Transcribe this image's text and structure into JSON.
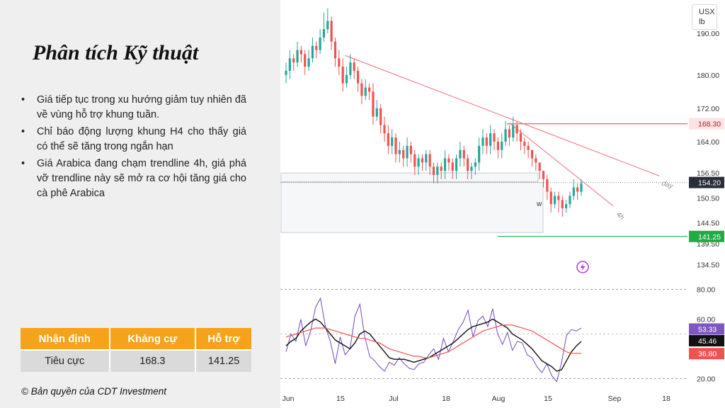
{
  "panel": {
    "title": "Phân tích Kỹ thuật",
    "bullets": [
      "Giá tiếp tục trong xu hướng giảm tuy nhiên đã về vùng hỗ trợ khung tuần.",
      "Chỉ báo động lượng khung H4 cho thấy giá có thể sẽ tăng trong ngắn hạn",
      "Giá Arabica đang chạm trendline 4h, giá phá vỡ trendline này sẽ mở ra cơ hội tăng giá cho cà phê Arabica"
    ],
    "table": {
      "headers": [
        "Nhận định",
        "Kháng cự",
        "Hỗ trợ"
      ],
      "rows": [
        [
          "Tiêu cực",
          "168.3",
          "141.25"
        ]
      ]
    },
    "copyright": "© Bản quyền của CDT Investment"
  },
  "colors": {
    "up": "#26a69a",
    "down": "#ef5350",
    "resistance": "#f23645",
    "support": "#22ab45",
    "trendline": "#f26b7a",
    "rsi": "#7e57c2",
    "orange": "#f5a31a"
  },
  "chart_data": [
    {
      "type": "candlestick",
      "unit": [
        "USX",
        "lb"
      ],
      "ylim": [
        130,
        198
      ],
      "x_ticks": [
        "Jun",
        "15",
        "Jul",
        "18",
        "Aug",
        "15",
        "Sep",
        "18"
      ],
      "y_ticks": [
        190.0,
        180.0,
        172.0,
        164.0,
        156.5,
        150.5,
        144.5,
        139.5,
        134.5
      ],
      "y_tick_labels": [
        "190.00",
        "180.00",
        "172.00",
        "164.00",
        "156.50",
        "150.50",
        "144.50",
        "139.50",
        "134.50"
      ],
      "price_labels": [
        {
          "value": 168.3,
          "label": "168.30",
          "kind": "resistance"
        },
        {
          "value": 154.2,
          "label": "154.20",
          "kind": "last"
        },
        {
          "value": 141.25,
          "label": "141.25",
          "kind": "support"
        }
      ],
      "trendline_labels": [
        "day",
        "4h"
      ],
      "annotations": [
        "w"
      ],
      "closes": [
        181,
        184,
        183,
        186,
        185,
        182,
        184,
        187,
        186,
        189,
        191,
        193,
        188,
        184,
        182,
        178,
        180,
        183,
        181,
        178,
        175,
        177,
        176,
        170,
        172,
        168,
        166,
        163,
        165,
        161,
        162,
        160,
        163,
        161,
        158,
        160,
        159,
        161,
        158,
        156,
        158,
        157,
        160,
        159,
        157,
        160,
        162,
        160,
        157,
        158,
        159,
        163,
        165,
        163,
        166,
        164,
        162,
        164,
        167,
        165,
        168,
        166,
        164,
        163,
        162,
        160,
        159,
        157,
        155,
        152,
        149,
        151,
        150,
        148,
        149,
        151,
        153,
        152,
        154
      ],
      "opens": [
        180,
        181,
        184,
        183,
        186,
        185,
        182,
        184,
        187,
        186,
        189,
        191,
        193,
        188,
        184,
        182,
        178,
        180,
        183,
        181,
        178,
        175,
        177,
        176,
        170,
        172,
        168,
        166,
        163,
        165,
        161,
        162,
        160,
        163,
        161,
        158,
        160,
        159,
        161,
        158,
        156,
        158,
        157,
        160,
        159,
        157,
        160,
        162,
        160,
        157,
        158,
        159,
        163,
        165,
        163,
        166,
        164,
        162,
        164,
        167,
        165,
        168,
        166,
        164,
        163,
        162,
        160,
        159,
        157,
        155,
        152,
        149,
        151,
        150,
        148,
        149,
        151,
        153,
        152
      ],
      "highs": [
        183,
        186,
        185,
        188,
        187,
        186,
        186,
        189,
        188,
        191,
        195,
        196,
        194,
        189,
        186,
        184,
        182,
        185,
        184,
        182,
        179,
        179,
        178,
        178,
        174,
        173,
        170,
        168,
        167,
        166,
        164,
        163,
        165,
        164,
        162,
        161,
        161,
        162,
        162,
        159,
        159,
        159,
        162,
        161,
        160,
        161,
        164,
        163,
        161,
        159,
        160,
        165,
        167,
        166,
        168,
        167,
        165,
        166,
        169,
        168,
        170,
        169,
        167,
        165,
        164,
        162,
        161,
        159,
        157,
        156,
        153,
        152,
        152,
        151,
        150,
        152,
        155,
        154,
        155
      ],
      "lows": [
        178,
        179,
        181,
        182,
        183,
        180,
        181,
        183,
        184,
        185,
        188,
        190,
        186,
        182,
        180,
        176,
        177,
        179,
        179,
        176,
        173,
        174,
        174,
        168,
        169,
        166,
        164,
        161,
        161,
        159,
        159,
        158,
        158,
        159,
        156,
        156,
        157,
        157,
        156,
        154,
        154,
        155,
        155,
        157,
        155,
        155,
        158,
        158,
        155,
        155,
        156,
        157,
        161,
        161,
        161,
        162,
        160,
        160,
        163,
        163,
        164,
        164,
        162,
        161,
        160,
        158,
        157,
        155,
        153,
        150,
        147,
        148,
        147,
        146,
        147,
        148,
        150,
        150,
        151
      ]
    },
    {
      "type": "line",
      "name": "momentum",
      "ylim": [
        15,
        85
      ],
      "y_ticks": [
        80,
        60,
        20
      ],
      "y_tick_labels": [
        "80.00",
        "60.00",
        "20.00"
      ],
      "value_labels": [
        "53.33",
        "45.46",
        "36.80"
      ],
      "series": [
        {
          "role": "rsi",
          "values": [
            38,
            50,
            45,
            60,
            42,
            52,
            68,
            74,
            55,
            45,
            30,
            48,
            36,
            40,
            62,
            70,
            48,
            35,
            32,
            28,
            25,
            31,
            29,
            34,
            30,
            27,
            26,
            30,
            31,
            36,
            40,
            33,
            47,
            38,
            45,
            53,
            58,
            66,
            48,
            59,
            62,
            55,
            67,
            50,
            43,
            51,
            39,
            45,
            44,
            36,
            34,
            28,
            24,
            30,
            22,
            18,
            31,
            49,
            53,
            52,
            54
          ]
        },
        {
          "role": "signal",
          "values": [
            42,
            45,
            47,
            52,
            55,
            58,
            60,
            58,
            54,
            50,
            46,
            44,
            42,
            40,
            44,
            50,
            52,
            50,
            46,
            42,
            38,
            34,
            33,
            33,
            33,
            32,
            31,
            32,
            33,
            34,
            36,
            38,
            40,
            42,
            44,
            47,
            50,
            53,
            55,
            56,
            57,
            58,
            60,
            58,
            56,
            54,
            50,
            48,
            46,
            43,
            40,
            36,
            32,
            30,
            28,
            25,
            26,
            32,
            38,
            42,
            45
          ]
        },
        {
          "role": "ma",
          "values": [
            48,
            49,
            50,
            51,
            52,
            53,
            54,
            54,
            54,
            53,
            52,
            51,
            50,
            49,
            48,
            47,
            47,
            46,
            45,
            44,
            42,
            40,
            39,
            38,
            37,
            36,
            35,
            35,
            34,
            34,
            35,
            36,
            37,
            38,
            40,
            42,
            44,
            46,
            48,
            50,
            52,
            53,
            54,
            55,
            56,
            56,
            56,
            55,
            54,
            53,
            52,
            50,
            48,
            46,
            44,
            42,
            40,
            38,
            37,
            37,
            37
          ]
        }
      ]
    }
  ]
}
